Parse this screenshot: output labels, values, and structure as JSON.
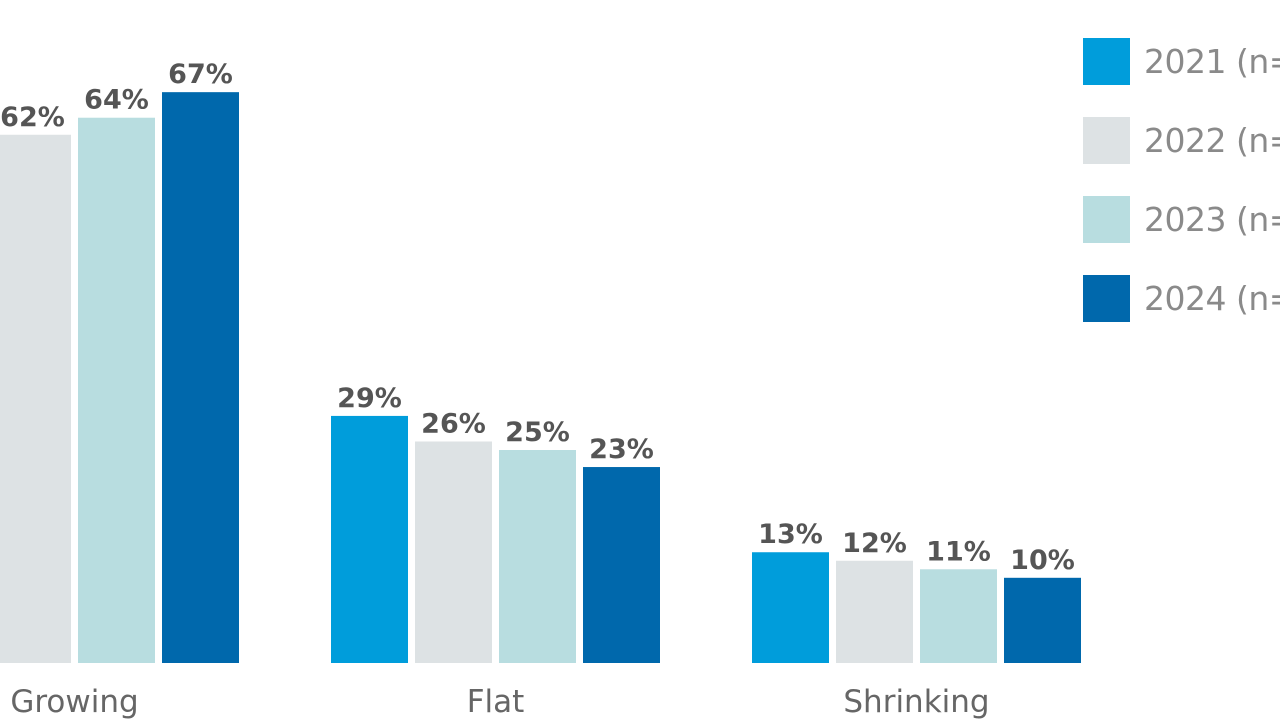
{
  "chart_data": {
    "type": "bar",
    "title": "",
    "xlabel": "",
    "ylabel": "",
    "ylim": [
      0,
      67
    ],
    "categories": [
      "Growing",
      "Flat",
      "Shrinking"
    ],
    "series": [
      {
        "name": "2021 (n=",
        "color": "#009ddb",
        "values": [
          null,
          29,
          13
        ],
        "labels": [
          "",
          "29%",
          "13%"
        ]
      },
      {
        "name": "2022 (n=",
        "color": "#dde2e4",
        "values": [
          62,
          26,
          12
        ],
        "labels": [
          "62%",
          "26%",
          "12%"
        ]
      },
      {
        "name": "2023 (n=",
        "color": "#b8dde0",
        "values": [
          64,
          25,
          11
        ],
        "labels": [
          "64%",
          "25%",
          "11%"
        ]
      },
      {
        "name": "2024 (n=",
        "color": "#0068ac",
        "values": [
          67,
          23,
          10
        ],
        "labels": [
          "67%",
          "23%",
          "10%"
        ]
      }
    ],
    "legend_position": "top-right",
    "grid": false
  },
  "colors": {
    "label_text": "#555555",
    "category_text": "#666666",
    "legend_text": "#8a8a8a"
  }
}
